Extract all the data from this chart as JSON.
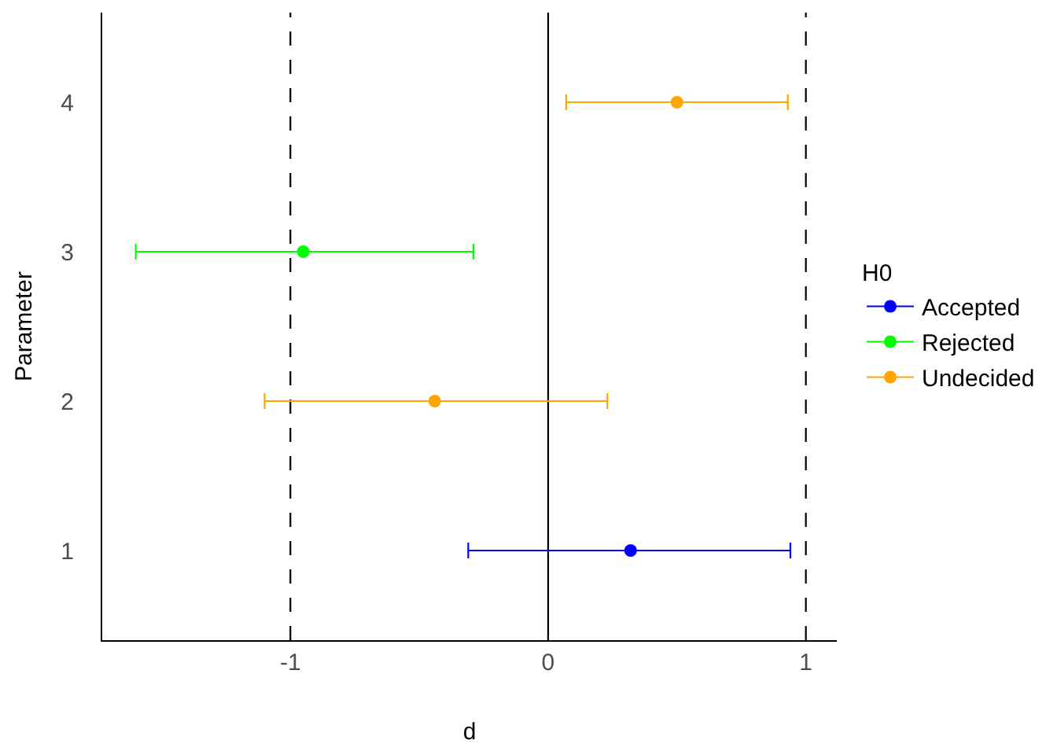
{
  "chart_data": {
    "type": "scatter",
    "xlabel": "d",
    "ylabel": "Parameter",
    "legend_title": "H0",
    "series": [
      {
        "name": "Accepted",
        "color": "#0000ff",
        "x": [
          0.32
        ],
        "values": [
          1
        ],
        "xerrors": [
          [
            -0.31,
            0.94
          ]
        ]
      },
      {
        "name": "Rejected",
        "color": "#00ff00",
        "x": [
          -0.95
        ],
        "values": [
          3
        ],
        "xerrors": [
          [
            -1.6,
            -0.29
          ]
        ]
      },
      {
        "name": "Undecided",
        "color": "#ffa500",
        "x": [
          -0.44,
          0.5
        ],
        "values": [
          2,
          4
        ],
        "xerrors": [
          [
            -1.1,
            0.23
          ],
          [
            0.07,
            0.93
          ]
        ]
      }
    ],
    "xlim": [
      -1.73,
      1.12
    ],
    "xticks": [
      -1,
      0,
      1
    ],
    "ylim": [
      0.4,
      4.6
    ],
    "yticks": [
      1,
      2,
      3,
      4
    ],
    "ref_lines": [
      {
        "axis": "x",
        "value": -1,
        "color": "#000000",
        "line_style": "dashed"
      },
      {
        "axis": "x",
        "value": 0,
        "color": "#000000",
        "line_style": "solid"
      },
      {
        "axis": "x",
        "value": 1,
        "color": "#000000",
        "line_style": "dashed"
      }
    ],
    "grid": false,
    "legend": "right",
    "marker": "circle"
  }
}
